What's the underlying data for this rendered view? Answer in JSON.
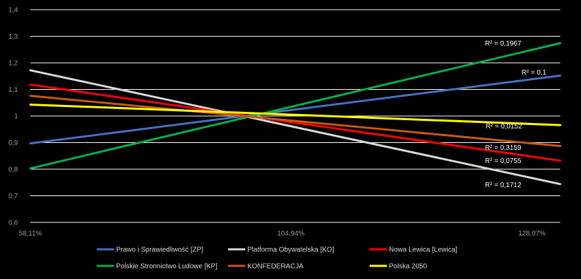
{
  "chart_data": {
    "type": "line",
    "x_ticks": [
      "58,11%",
      "104,94%",
      "128,07%"
    ],
    "x_range": [
      0.5811,
      1.2807
    ],
    "ylim": [
      0.6,
      1.4
    ],
    "y_ticks": [
      "0,6",
      "0,7",
      "0,8",
      "0,9",
      "1",
      "1,1",
      "1,2",
      "1,3",
      "1,4"
    ],
    "y_tick_values": [
      0.6,
      0.7,
      0.8,
      0.9,
      1.0,
      1.1,
      1.2,
      1.3,
      1.4
    ],
    "grid": true,
    "legend_position": "bottom",
    "series": [
      {
        "name": "Prawo i Sprawiedliwość [ZP]",
        "color": "#4472C4",
        "x": [
          0.5811,
          1.2807
        ],
        "y": [
          0.897,
          1.152
        ],
        "r2": "R² = 0,1"
      },
      {
        "name": "Platforma Obywatelska [KO]",
        "color": "#D9D9D9",
        "x": [
          0.5811,
          1.2807
        ],
        "y": [
          1.172,
          0.744
        ],
        "r2": "R² = 0,1712"
      },
      {
        "name": "Nowa Lewica [Lewica]",
        "color": "#FF0000",
        "x": [
          0.5811,
          1.2807
        ],
        "y": [
          1.118,
          0.832
        ],
        "r2": "R² = 0,0755"
      },
      {
        "name": "Polskie Stronnictwo Ludowe [KP]",
        "color": "#00B050",
        "x": [
          0.5811,
          1.2807
        ],
        "y": [
          0.803,
          1.274
        ],
        "r2": "R² = 0,1967"
      },
      {
        "name": "KONFEDERACJA",
        "color": "#C55A11",
        "x": [
          0.5811,
          1.2807
        ],
        "y": [
          1.076,
          0.887
        ],
        "r2": "R² = 0,3159"
      },
      {
        "name": "Polska 2050",
        "color": "#FFFF00",
        "x": [
          0.5811,
          1.2807
        ],
        "y": [
          1.043,
          0.966
        ],
        "r2": "R² = 0,0152"
      }
    ]
  }
}
